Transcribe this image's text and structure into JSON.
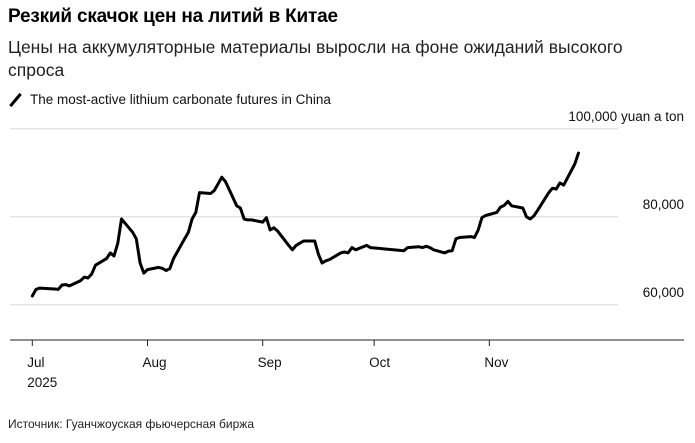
{
  "header": {
    "title": "Резкий скачок цен на литий в Китае",
    "subtitle": "Цены на аккумуляторные материалы выросли на фоне ожиданий высокого спроса"
  },
  "footer": {
    "source": "Источник: Гуанчжоуская фьючерсная биржа"
  },
  "chart_data": {
    "type": "line",
    "title": "Резкий скачок цен на литий в Китае",
    "subtitle": "Цены на аккумуляторные материалы выросли на фоне ожиданий высокого спроса",
    "legend_position": "top-left",
    "grid": true,
    "series": [
      {
        "name": "The most-active lithium carbonate futures in China",
        "color": "#000000",
        "points": [
          [
            "2025-07-01",
            62000
          ],
          [
            "2025-07-02",
            63500
          ],
          [
            "2025-07-03",
            63800
          ],
          [
            "2025-07-07",
            63600
          ],
          [
            "2025-07-08",
            63500
          ],
          [
            "2025-07-09",
            64500
          ],
          [
            "2025-07-10",
            64600
          ],
          [
            "2025-07-11",
            64300
          ],
          [
            "2025-07-14",
            65500
          ],
          [
            "2025-07-15",
            66300
          ],
          [
            "2025-07-16",
            66100
          ],
          [
            "2025-07-17",
            67000
          ],
          [
            "2025-07-18",
            69000
          ],
          [
            "2025-07-21",
            70500
          ],
          [
            "2025-07-22",
            71800
          ],
          [
            "2025-07-23",
            71100
          ],
          [
            "2025-07-24",
            74000
          ],
          [
            "2025-07-25",
            79500
          ],
          [
            "2025-07-28",
            76500
          ],
          [
            "2025-07-29",
            75000
          ],
          [
            "2025-07-30",
            69500
          ],
          [
            "2025-07-31",
            67200
          ],
          [
            "2025-08-01",
            68000
          ],
          [
            "2025-08-04",
            68500
          ],
          [
            "2025-08-05",
            68300
          ],
          [
            "2025-08-06",
            67800
          ],
          [
            "2025-08-07",
            68200
          ],
          [
            "2025-08-08",
            70500
          ],
          [
            "2025-08-11",
            75000
          ],
          [
            "2025-08-12",
            76500
          ],
          [
            "2025-08-13",
            79500
          ],
          [
            "2025-08-14",
            81000
          ],
          [
            "2025-08-15",
            85500
          ],
          [
            "2025-08-18",
            85300
          ],
          [
            "2025-08-19",
            86000
          ],
          [
            "2025-08-20",
            87500
          ],
          [
            "2025-08-21",
            89000
          ],
          [
            "2025-08-22",
            88000
          ],
          [
            "2025-08-25",
            82500
          ],
          [
            "2025-08-26",
            82000
          ],
          [
            "2025-08-27",
            79500
          ],
          [
            "2025-08-28",
            79300
          ],
          [
            "2025-08-29",
            79300
          ],
          [
            "2025-09-01",
            78800
          ],
          [
            "2025-09-02",
            79800
          ],
          [
            "2025-09-03",
            77000
          ],
          [
            "2025-09-04",
            77500
          ],
          [
            "2025-09-05",
            76800
          ],
          [
            "2025-09-08",
            73500
          ],
          [
            "2025-09-09",
            72500
          ],
          [
            "2025-09-10",
            73500
          ],
          [
            "2025-09-11",
            74000
          ],
          [
            "2025-09-12",
            74500
          ],
          [
            "2025-09-15",
            74500
          ],
          [
            "2025-09-16",
            71500
          ],
          [
            "2025-09-17",
            69500
          ],
          [
            "2025-09-18",
            70000
          ],
          [
            "2025-09-19",
            70300
          ],
          [
            "2025-09-22",
            71800
          ],
          [
            "2025-09-23",
            72000
          ],
          [
            "2025-09-24",
            71800
          ],
          [
            "2025-09-25",
            73000
          ],
          [
            "2025-09-26",
            72500
          ],
          [
            "2025-09-29",
            73500
          ],
          [
            "2025-09-30",
            73000
          ],
          [
            "2025-10-09",
            72300
          ],
          [
            "2025-10-10",
            73000
          ],
          [
            "2025-10-13",
            73200
          ],
          [
            "2025-10-14",
            73000
          ],
          [
            "2025-10-15",
            73300
          ],
          [
            "2025-10-16",
            73000
          ],
          [
            "2025-10-17",
            72500
          ],
          [
            "2025-10-20",
            71800
          ],
          [
            "2025-10-21",
            72200
          ],
          [
            "2025-10-22",
            72300
          ],
          [
            "2025-10-23",
            75000
          ],
          [
            "2025-10-24",
            75300
          ],
          [
            "2025-10-27",
            75500
          ],
          [
            "2025-10-28",
            75300
          ],
          [
            "2025-10-29",
            77000
          ],
          [
            "2025-10-30",
            79800
          ],
          [
            "2025-10-31",
            80300
          ],
          [
            "2025-11-03",
            81000
          ],
          [
            "2025-11-04",
            82200
          ],
          [
            "2025-11-05",
            82600
          ],
          [
            "2025-11-06",
            83500
          ],
          [
            "2025-11-07",
            82500
          ],
          [
            "2025-11-10",
            82000
          ],
          [
            "2025-11-11",
            80000
          ],
          [
            "2025-11-12",
            79500
          ],
          [
            "2025-11-13",
            80200
          ],
          [
            "2025-11-14",
            81500
          ],
          [
            "2025-11-17",
            85500
          ],
          [
            "2025-11-18",
            86500
          ],
          [
            "2025-11-19",
            86300
          ],
          [
            "2025-11-20",
            87700
          ],
          [
            "2025-11-21",
            87200
          ],
          [
            "2025-11-24",
            92000
          ],
          [
            "2025-11-25",
            94500
          ]
        ]
      }
    ],
    "x_axis": {
      "range": [
        "2025-06-25",
        "2025-12-25"
      ],
      "ticks": [
        {
          "value": "2025-07-01",
          "label": "Jul",
          "sublabel": "2025"
        },
        {
          "value": "2025-08-01",
          "label": "Aug",
          "sublabel": ""
        },
        {
          "value": "2025-09-01",
          "label": "Sep",
          "sublabel": ""
        },
        {
          "value": "2025-10-01",
          "label": "Oct",
          "sublabel": ""
        },
        {
          "value": "2025-11-01",
          "label": "Nov",
          "sublabel": ""
        }
      ]
    },
    "y_axis": {
      "unit_label": "100,000 yuan a ton",
      "range": [
        52000,
        102000
      ],
      "ticks": [
        {
          "value": 60000,
          "label": "60,000"
        },
        {
          "value": 80000,
          "label": "80,000"
        },
        {
          "value": 100000,
          "label": "100,000 yuan a ton"
        }
      ]
    }
  }
}
